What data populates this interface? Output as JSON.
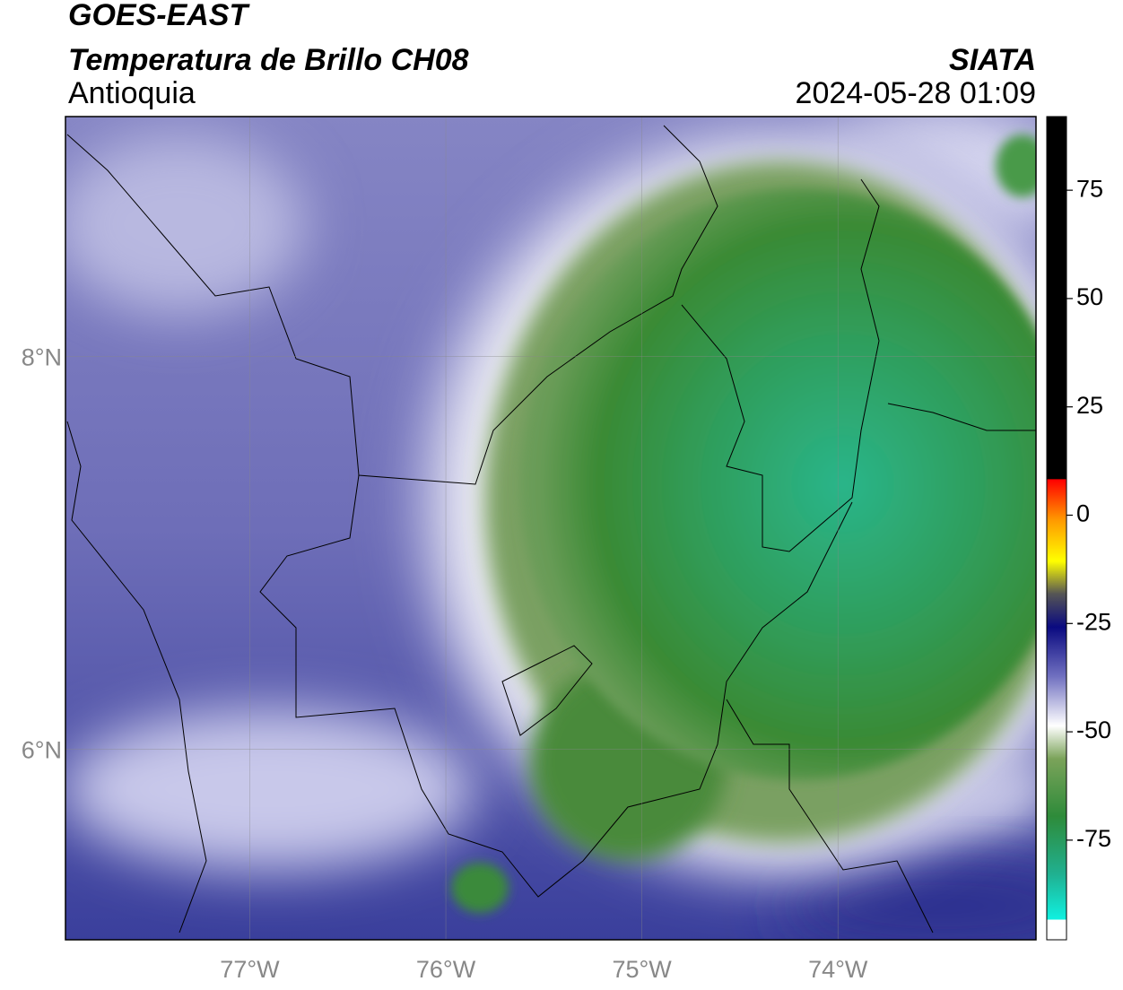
{
  "header": {
    "title": "GOES-EAST",
    "subtitle": "Temperatura de Brillo CH08",
    "region": "Antioquia",
    "source": "SIATA",
    "timestamp": "2024-05-28 01:09"
  },
  "map": {
    "lonlim": [
      -77.94,
      -72.99
    ],
    "latlim": [
      5.03,
      9.22
    ],
    "lonticks": [
      {
        "value": -77,
        "label": "77°W"
      },
      {
        "value": -76,
        "label": "76°W"
      },
      {
        "value": -75,
        "label": "75°W"
      },
      {
        "value": -74,
        "label": "74°W"
      }
    ],
    "latticks": [
      {
        "value": 8,
        "label": "8°N"
      },
      {
        "value": 6,
        "label": "6°N"
      }
    ]
  },
  "colorbar": {
    "lim": [
      -98,
      92
    ],
    "ticks": [
      75,
      50,
      25,
      0,
      -25,
      -50,
      -75
    ]
  }
}
